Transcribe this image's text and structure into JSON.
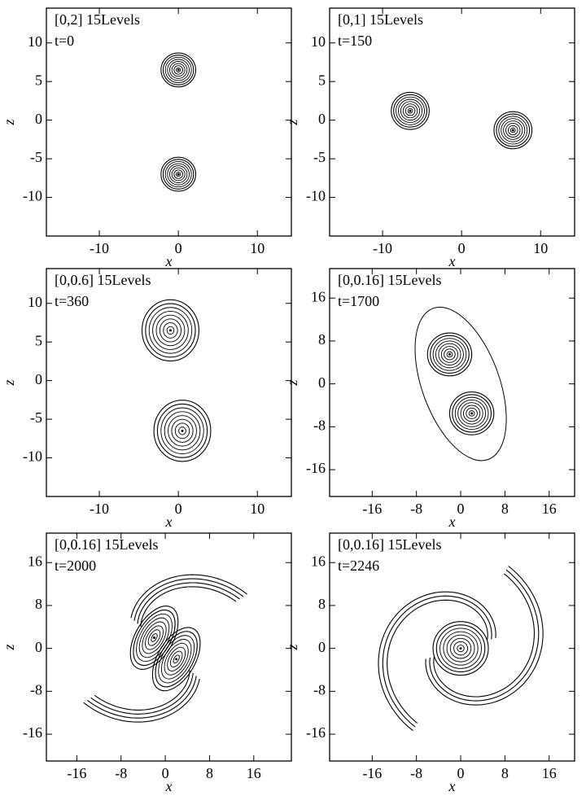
{
  "chart_data": [
    {
      "type": "contour",
      "title": "[0,2] 15Levels",
      "annotation": "t=0",
      "xlabel": "x",
      "ylabel": "z",
      "xlim": [
        -16.7,
        14.3
      ],
      "ylim": [
        -15,
        14.5
      ],
      "xticks": [
        -10,
        0,
        10
      ],
      "yticks": [
        10,
        5,
        0,
        -5,
        -10
      ],
      "x": [
        0,
        0
      ],
      "values": [
        6.5,
        -7
      ],
      "color": "#000000"
    },
    {
      "type": "contour",
      "title": "[0,1] 15Levels",
      "annotation": "t=150",
      "xlabel": "x",
      "ylabel": "z",
      "xlim": [
        -16.7,
        14.3
      ],
      "ylim": [
        -15,
        14.5
      ],
      "xticks": [
        -10,
        0,
        10
      ],
      "yticks": [
        10,
        5,
        0,
        -5,
        -10
      ],
      "x": [
        -6.5,
        6.5
      ],
      "values": [
        1.2,
        -1.3
      ],
      "color": "#000000"
    },
    {
      "type": "contour",
      "title": "[0,0.6] 15Levels",
      "annotation": "t=360",
      "xlabel": "x",
      "ylabel": "z",
      "xlim": [
        -16.7,
        14.3
      ],
      "ylim": [
        -15,
        14.5
      ],
      "xticks": [
        -10,
        0,
        10
      ],
      "yticks": [
        10,
        5,
        0,
        -5,
        -10
      ],
      "x": [
        -1,
        0.5
      ],
      "values": [
        6.5,
        -6.5
      ],
      "color": "#000000"
    },
    {
      "type": "contour",
      "title": "[0,0.16] 15Levels",
      "annotation": "t=1700",
      "xlabel": "x",
      "ylabel": "z",
      "xlim": [
        -23.7,
        20.6
      ],
      "ylim": [
        -21,
        21.5
      ],
      "xticks": [
        -16,
        -8,
        0,
        8,
        16
      ],
      "yticks": [
        16,
        8,
        0,
        -8,
        -16
      ],
      "x": [
        -2,
        2
      ],
      "values": [
        5.5,
        -5.5
      ],
      "color": "#000000"
    },
    {
      "type": "contour",
      "title": "[0,0.16] 15Levels",
      "annotation": "t=2000",
      "xlabel": "x",
      "ylabel": "z",
      "xlim": [
        -21.5,
        22.8
      ],
      "ylim": [
        -21,
        21.5
      ],
      "xticks": [
        -16,
        -8,
        0,
        8,
        16
      ],
      "yticks": [
        16,
        8,
        0,
        -8,
        -16
      ],
      "x": [
        -2,
        2
      ],
      "values": [
        2,
        -2
      ],
      "color": "#000000"
    },
    {
      "type": "contour",
      "title": "[0,0.16] 15Levels",
      "annotation": "t=2246",
      "xlabel": "x",
      "ylabel": "z",
      "xlim": [
        -23.7,
        20.6
      ],
      "ylim": [
        -21,
        21.5
      ],
      "xticks": [
        -16,
        -8,
        0,
        8,
        16
      ],
      "yticks": [
        16,
        8,
        0,
        -8,
        -16
      ],
      "x": [
        0
      ],
      "values": [
        0
      ],
      "color": "#000000"
    }
  ]
}
